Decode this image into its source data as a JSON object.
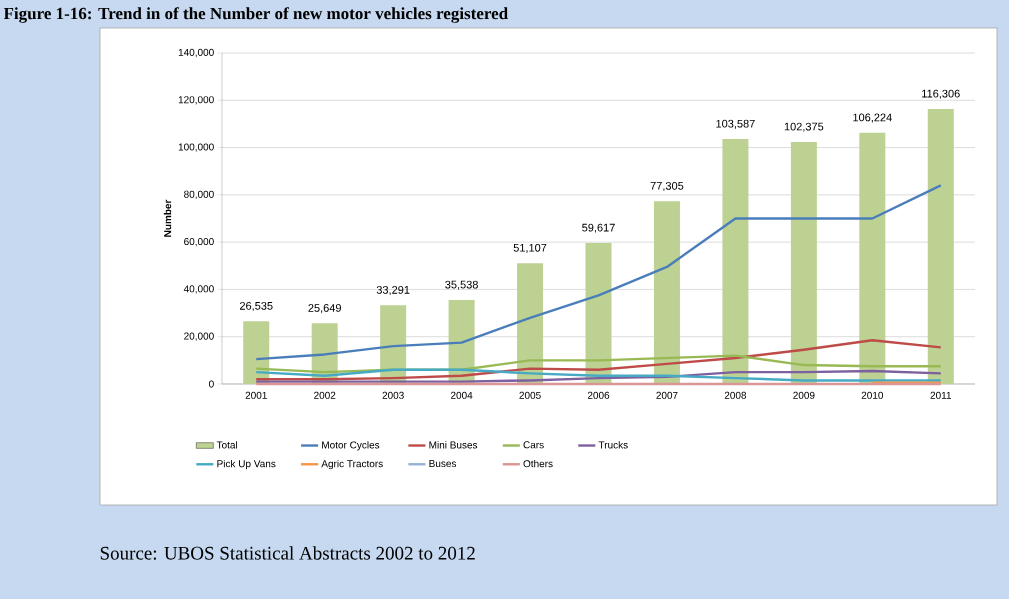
{
  "chart_data": {
    "type": "bar",
    "title": "Figure 1-16: Trend in of the Number of new  motor vehicles registered",
    "ylabel": "Number",
    "annotations": [
      "Source: UBOS Statistical Abstracts 2002 to 2012"
    ],
    "categories": [
      "2001",
      "2002",
      "2003",
      "2004",
      "2005",
      "2006",
      "2007",
      "2008",
      "2009",
      "2010",
      "2011"
    ],
    "series": [
      {
        "name": "Total",
        "color": "#bcd192",
        "values": [
          26535,
          25649,
          33291,
          35538,
          51107,
          59617,
          77305,
          103587,
          102375,
          106224,
          116306
        ],
        "value_labels": [
          "26,535",
          "25,649",
          "33,291",
          "35,538",
          "51,107",
          "59,617",
          "77,305",
          "103,587",
          "102,375",
          "106,224",
          "116,306"
        ]
      },
      {
        "name": "Motor Cycles",
        "type": "line",
        "color": "#4a7ebb",
        "values": [
          10500,
          12500,
          16000,
          17500,
          28000,
          37500,
          49500,
          70000,
          70000,
          70000,
          84000
        ]
      },
      {
        "name": "Mini Buses",
        "type": "line",
        "color": "#be4b48",
        "values": [
          2000,
          2000,
          2500,
          3500,
          6500,
          6000,
          8500,
          11000,
          14500,
          18500,
          15500
        ]
      },
      {
        "name": "Cars",
        "type": "line",
        "color": "#98b954",
        "values": [
          6500,
          5000,
          6000,
          6000,
          10000,
          10000,
          11000,
          12000,
          8000,
          7500,
          7500
        ]
      },
      {
        "name": "Trucks",
        "type": "line",
        "color": "#7d60a0",
        "values": [
          1000,
          1000,
          1000,
          1000,
          1500,
          2500,
          3000,
          5000,
          5000,
          5500,
          4500
        ]
      },
      {
        "name": "Pick Up Vans",
        "type": "line",
        "color": "#46aac5",
        "values": [
          5000,
          3500,
          6000,
          6000,
          4500,
          3500,
          3500,
          2500,
          1500,
          1500,
          1500
        ]
      },
      {
        "name": "Agric Tractors",
        "type": "line",
        "color": "#f79646",
        "values": [
          null,
          null,
          null,
          null,
          null,
          null,
          null,
          null,
          null,
          500,
          500
        ]
      },
      {
        "name": "Buses",
        "type": "line",
        "color": "#95b3d7",
        "values": [
          null,
          null,
          null,
          null,
          null,
          null,
          null,
          null,
          null,
          null,
          null
        ]
      },
      {
        "name": "Others",
        "type": "line",
        "color": "#d99694",
        "values": [
          0,
          0,
          0,
          0,
          0,
          0,
          0,
          0,
          0,
          0,
          0
        ]
      }
    ],
    "ylim": [
      0,
      140000
    ],
    "yticks": [
      0,
      {
        "value": 20000,
        "label": "20,000"
      },
      {
        "value": 40000,
        "label": "40,000"
      },
      {
        "value": 60000,
        "label": "60,000"
      },
      {
        "value": 80000,
        "label": "80,000"
      },
      {
        "value": 100000,
        "label": "100,000"
      },
      {
        "value": 120000,
        "label": "120,000"
      },
      {
        "value": 140000,
        "label": "140,000"
      }
    ],
    "grid": "y",
    "legend": "bottom",
    "marker": "none",
    "line_style": "solid"
  }
}
